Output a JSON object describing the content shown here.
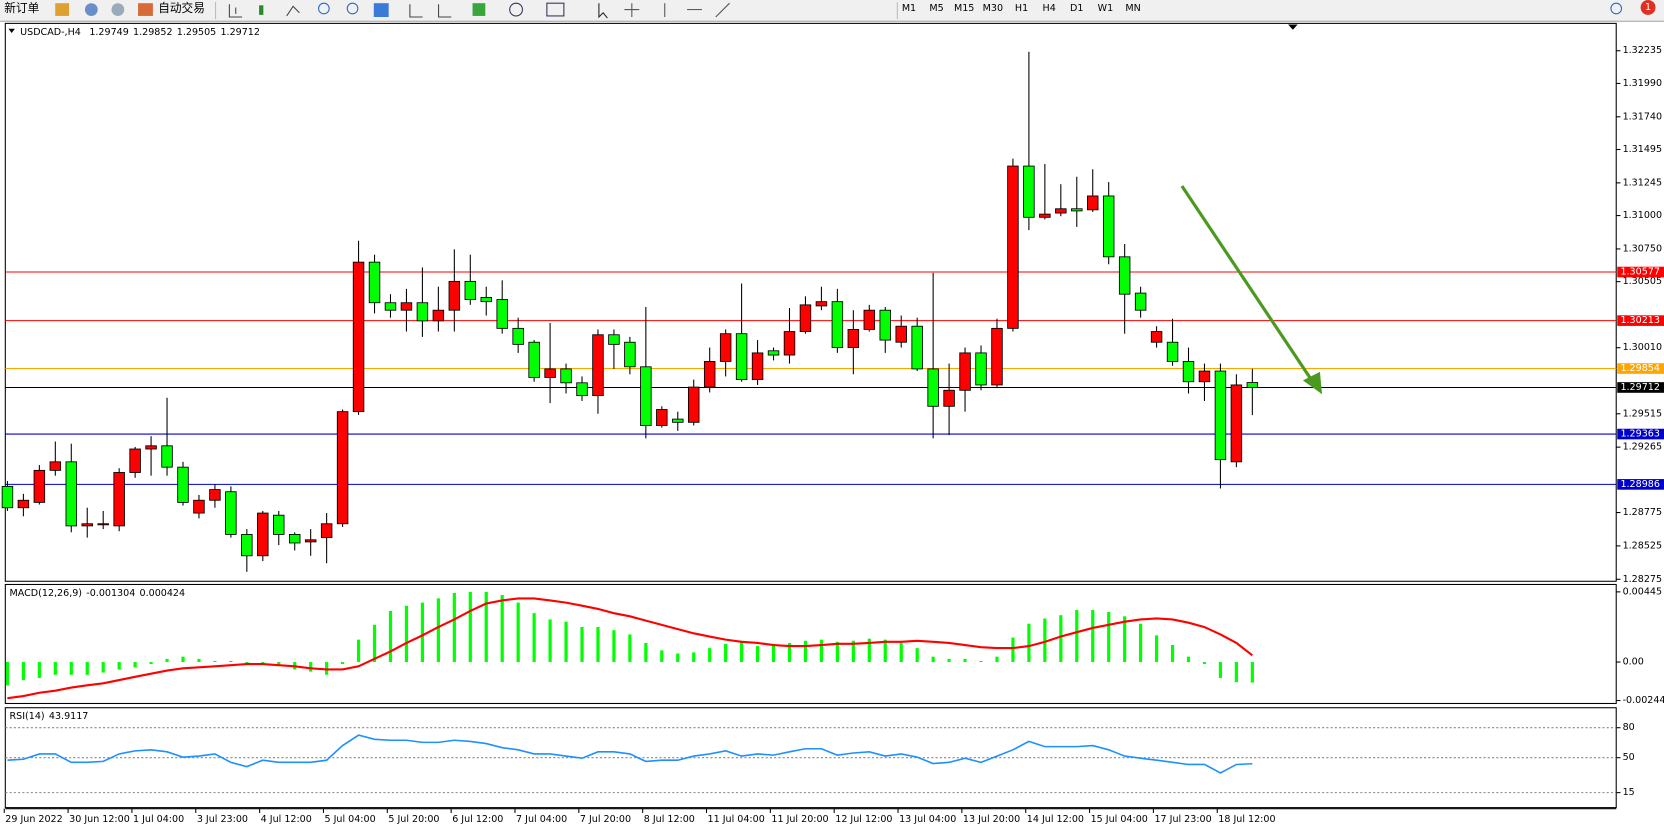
{
  "toolbar": {
    "new_order": "新订单",
    "auto_trading": "自动交易",
    "timeframes": [
      "M1",
      "M5",
      "M15",
      "M30",
      "H1",
      "H4",
      "D1",
      "W1",
      "MN"
    ],
    "badge": "1"
  },
  "chart_data": [
    {
      "type": "candlestick",
      "title": "USDCAD-,H4",
      "up_color": "#ff0000",
      "down_color": "#00ff00",
      "categories": [
        "29 Jun 2022",
        null,
        null,
        null,
        "30 Jun 12:00",
        null,
        null,
        null,
        "1 Jul 04:00",
        null,
        null,
        null,
        "3 Jul 23:00",
        null,
        null,
        null,
        "4 Jul 12:00",
        null,
        null,
        null,
        "5 Jul 04:00",
        null,
        null,
        null,
        "5 Jul 20:00",
        null,
        null,
        null,
        "6 Jul 12:00",
        null,
        null,
        null,
        "7 Jul 04:00",
        null,
        null,
        null,
        "7 Jul 20:00",
        null,
        null,
        null,
        "8 Jul 12:00",
        null,
        null,
        null,
        "11 Jul 04:00",
        null,
        null,
        null,
        "11 Jul 20:00",
        null,
        null,
        null,
        "12 Jul 12:00",
        null,
        null,
        null,
        "13 Jul 04:00",
        null,
        null,
        null,
        "13 Jul 20:00",
        null,
        null,
        null,
        "14 Jul 12:00",
        null,
        null,
        null,
        "15 Jul 04:00",
        null,
        null,
        null,
        "17 Jul 23:00",
        null,
        null,
        null,
        "18 Jul 12:00",
        null,
        null
      ],
      "open": [
        1.28971,
        1.28811,
        1.28851,
        1.29091,
        1.29155,
        1.28675,
        1.28683,
        1.28675,
        1.29075,
        1.29251,
        1.29275,
        1.29115,
        1.28771,
        1.28867,
        1.28931,
        1.28611,
        1.28451,
        1.28755,
        1.28611,
        1.28555,
        1.28587,
        1.28691,
        1.29531,
        1.30651,
        1.30347,
        1.30291,
        1.30347,
        1.30211,
        1.30291,
        1.30507,
        1.30387,
        1.30371,
        1.30155,
        1.30051,
        1.29787,
        1.29851,
        1.29747,
        1.29651,
        1.30107,
        1.30051,
        1.29867,
        1.29427,
        1.29475,
        1.29451,
        1.29715,
        1.29907,
        1.30115,
        1.29771,
        1.29987,
        1.29955,
        1.30131,
        1.30323,
        1.30355,
        1.30011,
        1.30147,
        1.30291,
        1.30051,
        1.30171,
        1.29851,
        1.29571,
        1.29691,
        1.29971,
        1.29731,
        1.30155,
        1.31371,
        1.30987,
        1.31019,
        1.31051,
        1.31043,
        1.31147,
        1.30691,
        1.30419,
        1.30051,
        1.30051,
        1.29907,
        1.29755,
        1.29835,
        1.29155,
        1.29749
      ],
      "high": [
        1.29011,
        1.28915,
        1.29131,
        1.29307,
        1.29291,
        1.28811,
        1.28787,
        1.29107,
        1.29267,
        1.29347,
        1.29635,
        1.29155,
        1.28907,
        1.28987,
        1.28971,
        1.28651,
        1.28787,
        1.28787,
        1.28627,
        1.28651,
        1.28771,
        1.29547,
        1.30811,
        1.30707,
        1.30411,
        1.30451,
        1.30611,
        1.30467,
        1.30747,
        1.30707,
        1.30467,
        1.30515,
        1.30235,
        1.30067,
        1.30195,
        1.29891,
        1.29795,
        1.30147,
        1.30147,
        1.30091,
        1.30315,
        1.29571,
        1.29531,
        1.29771,
        1.30011,
        1.30147,
        1.30491,
        1.30067,
        1.30011,
        1.30307,
        1.30395,
        1.30467,
        1.30451,
        1.30291,
        1.30331,
        1.30315,
        1.30251,
        1.30235,
        1.30571,
        1.29891,
        1.30011,
        1.30027,
        1.30227,
        1.31427,
        1.32227,
        1.31387,
        1.31235,
        1.31291,
        1.31347,
        1.31251,
        1.30787,
        1.30467,
        1.30171,
        1.30227,
        1.30011,
        1.29891,
        1.29891,
        1.29811,
        1.29852
      ],
      "low": [
        1.28787,
        1.28747,
        1.28835,
        1.29051,
        1.28627,
        1.28587,
        1.28651,
        1.28635,
        1.29035,
        1.29051,
        1.29051,
        1.28827,
        1.28731,
        1.28811,
        1.28587,
        1.28331,
        1.28411,
        1.28531,
        1.28491,
        1.28451,
        1.28395,
        1.28667,
        1.29507,
        1.30267,
        1.30235,
        1.30131,
        1.30091,
        1.30131,
        1.30131,
        1.30331,
        1.30251,
        1.30115,
        1.29971,
        1.29755,
        1.29595,
        1.29667,
        1.29611,
        1.29515,
        1.29851,
        1.29811,
        1.29331,
        1.29411,
        1.29387,
        1.29427,
        1.29675,
        1.29795,
        1.29755,
        1.29731,
        1.29915,
        1.29891,
        1.30115,
        1.30291,
        1.29971,
        1.29811,
        1.30131,
        1.29971,
        1.30011,
        1.29835,
        1.29331,
        1.29355,
        1.29531,
        1.29691,
        1.29707,
        1.30131,
        1.30891,
        1.30971,
        1.30995,
        1.30915,
        1.31027,
        1.30635,
        1.30115,
        1.30235,
        1.30011,
        1.29875,
        1.29667,
        1.29611,
        1.28955,
        1.29115,
        1.29505
      ],
      "close": [
        1.28811,
        1.28867,
        1.29091,
        1.29155,
        1.28675,
        1.28691,
        1.28691,
        1.29075,
        1.29251,
        1.29275,
        1.29115,
        1.28851,
        1.28867,
        1.28947,
        1.28611,
        1.28451,
        1.28771,
        1.28611,
        1.28547,
        1.28571,
        1.28691,
        1.29531,
        1.30651,
        1.30347,
        1.30291,
        1.30347,
        1.30211,
        1.30291,
        1.30507,
        1.30371,
        1.30355,
        1.30155,
        1.30035,
        1.29787,
        1.29851,
        1.29747,
        1.29651,
        1.30107,
        1.30035,
        1.29867,
        1.29427,
        1.29547,
        1.29451,
        1.29715,
        1.29907,
        1.30115,
        1.29771,
        1.29971,
        1.29955,
        1.30131,
        1.30331,
        1.30355,
        1.30011,
        1.30147,
        1.30291,
        1.30067,
        1.30171,
        1.29851,
        1.29571,
        1.29691,
        1.29971,
        1.29731,
        1.30155,
        1.31371,
        1.30987,
        1.31011,
        1.31051,
        1.31035,
        1.31147,
        1.30691,
        1.30411,
        1.30291,
        1.30131,
        1.29907,
        1.29755,
        1.29835,
        1.29171,
        1.29731,
        1.29712
      ],
      "ylim": [
        1.2826,
        1.3244
      ],
      "yticks": [
        1.32235,
        {
          "value": 1.3199,
          "label": "1.31990"
        },
        {
          "value": 1.3174,
          "label": "1.31740"
        },
        1.31495,
        1.31245,
        {
          "value": 1.31,
          "label": "1.31000"
        },
        {
          "value": 1.3075,
          "label": "1.30750"
        },
        1.30505,
        {
          "value": 1.3001,
          "label": "1.30010"
        },
        1.29515,
        1.29265,
        1.28775,
        1.28525,
        1.28275
      ],
      "price_lines": [
        {
          "value": 1.30577,
          "color": "#ff0000"
        },
        {
          "value": 1.30213,
          "color": "#ff0000"
        },
        {
          "value": 1.29854,
          "color": "#ffa500"
        },
        {
          "value": 1.29712,
          "color": "#000000"
        },
        {
          "value": 1.29363,
          "color": "#0000cd"
        },
        {
          "value": 1.28986,
          "color": "#0000cd"
        }
      ]
    },
    {
      "type": "macd",
      "title": "MACD(12,26,9)",
      "series": [
        {
          "type": "bar",
          "color": "#00ff00",
          "values": [
            -0.00148,
            -0.00115,
            -0.00101,
            -0.00081,
            -0.00081,
            -0.00081,
            -0.00067,
            -0.00047,
            -0.00034,
            -0.00013,
            0.0002,
            0.00034,
            0.0002,
            7e-05,
            7e-05,
            -0.00013,
            -0.00013,
            -0.00027,
            -0.00047,
            -0.00061,
            -0.00081,
            -0.00013,
            0.00142,
            0.00236,
            0.00324,
            0.00357,
            0.00377,
            0.00404,
            0.00438,
            0.00445,
            0.00445,
            0.00425,
            0.00377,
            0.0031,
            0.0027,
            0.00256,
            0.00222,
            0.00222,
            0.00202,
            0.00175,
            0.00121,
            0.00074,
            0.00054,
            0.00061,
            0.00088,
            0.00115,
            0.00135,
            0.00101,
            0.00115,
            0.00121,
            0.00135,
            0.00142,
            0.00128,
            0.00135,
            0.00148,
            0.00142,
            0.00121,
            0.00088,
            0.00034,
            0.0002,
            0.0002,
            7e-05,
            0.00034,
            0.00155,
            0.00243,
            0.00276,
            0.00297,
            0.0033,
            0.0033,
            0.00317,
            0.0029,
            0.00243,
            0.00169,
            0.00108,
            0.00034,
            -0.00013,
            -0.00101,
            -0.00128,
            -0.001304
          ]
        },
        {
          "type": "line",
          "color": "#ff0000",
          "values": [
            -0.00229,
            -0.00216,
            -0.00195,
            -0.00182,
            -0.00162,
            -0.00148,
            -0.00135,
            -0.00115,
            -0.00094,
            -0.00074,
            -0.00054,
            -0.0004,
            -0.00034,
            -0.00027,
            -0.0002,
            -0.00013,
            -0.00013,
            -0.0002,
            -0.00027,
            -0.0004,
            -0.00047,
            -0.00047,
            -0.00027,
            0.0002,
            0.00067,
            0.00121,
            0.00169,
            0.00222,
            0.0027,
            0.00324,
            0.00371,
            0.00391,
            0.00404,
            0.00404,
            0.00391,
            0.00377,
            0.00357,
            0.00337,
            0.0031,
            0.0029,
            0.00263,
            0.00236,
            0.00209,
            0.00182,
            0.00162,
            0.00142,
            0.00128,
            0.00121,
            0.00108,
            0.00101,
            0.00101,
            0.00108,
            0.00115,
            0.00115,
            0.00121,
            0.00128,
            0.00128,
            0.00135,
            0.00128,
            0.00121,
            0.00108,
            0.00094,
            0.00088,
            0.00088,
            0.00101,
            0.00128,
            0.00162,
            0.00189,
            0.00216,
            0.00236,
            0.00256,
            0.0027,
            0.00276,
            0.0027,
            0.00249,
            0.00222,
            0.00175,
            0.00121,
            0.000424
          ]
        }
      ],
      "ylim": [
        -0.00263,
        0.00492
      ],
      "yticks": [
        0.00445,
        {
          "value": 0,
          "label": "0.00"
        },
        -0.002443
      ]
    },
    {
      "type": "line",
      "title": "RSI(14)",
      "color": "#1e90ff",
      "values": [
        47.4,
        48.4,
        53.7,
        53.7,
        45.3,
        45.3,
        46.3,
        53.7,
        56.8,
        57.9,
        55.8,
        50.5,
        51.6,
        53.7,
        45.3,
        41.1,
        47.4,
        45.3,
        45.3,
        45.3,
        47.4,
        62.1,
        72.6,
        68.4,
        67.4,
        67.4,
        65.3,
        65.3,
        67.4,
        66.3,
        64.2,
        60,
        57.9,
        53.7,
        53.7,
        51.6,
        49.5,
        55.8,
        55.8,
        53.7,
        46.3,
        47.4,
        47.4,
        51.6,
        53.7,
        56.8,
        51.6,
        53.7,
        52.6,
        55.8,
        58.9,
        58.9,
        52.6,
        54.7,
        55.8,
        51.6,
        53.7,
        50.5,
        44.2,
        45.3,
        49.5,
        45.3,
        51.6,
        57.9,
        66.3,
        61.1,
        61.1,
        61.1,
        62.1,
        57.9,
        51.6,
        49.5,
        47.4,
        45.3,
        43.2,
        43.2,
        34.7,
        43.2,
        43.9117
      ],
      "ylim": [
        0,
        100
      ],
      "yticks": [
        80,
        50,
        15
      ],
      "grid": true
    }
  ]
}
